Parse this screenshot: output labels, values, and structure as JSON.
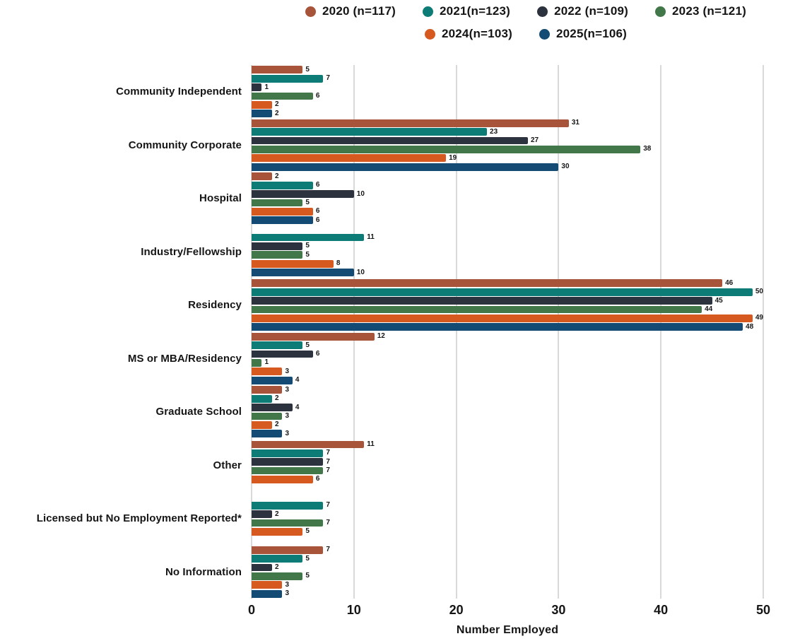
{
  "chart_data": {
    "type": "bar",
    "orientation": "horizontal",
    "xlabel": "Number Employed",
    "xlim": [
      0,
      50
    ],
    "xticks": [
      0,
      10,
      20,
      30,
      40,
      50
    ],
    "grid": "vertical",
    "value_labels": true,
    "legend_position": "top",
    "legend_rows": [
      [
        0,
        1,
        2,
        3
      ],
      [
        4,
        5
      ]
    ],
    "categories": [
      "Community Independent",
      "Community Corporate",
      "Hospital",
      "Industry/Fellowship",
      "Residency",
      "MS or MBA/Residency",
      "Graduate School",
      "Other",
      "Licensed but No Employment Reported*",
      "No Information"
    ],
    "series": [
      {
        "name": "2020 (n=117)",
        "color": "#a8543a",
        "values": [
          5,
          31,
          2,
          0,
          46,
          12,
          3,
          11,
          0,
          7
        ]
      },
      {
        "name": "2021(n=123)",
        "color": "#0e7c76",
        "values": [
          7,
          23,
          6,
          11,
          50,
          5,
          2,
          7,
          7,
          5
        ]
      },
      {
        "name": "2022 (n=109)",
        "color": "#2d333e",
        "values": [
          1,
          27,
          10,
          5,
          45,
          6,
          4,
          7,
          2,
          2
        ]
      },
      {
        "name": "2023 (n=121)",
        "color": "#42774a",
        "values": [
          6,
          38,
          5,
          5,
          44,
          1,
          3,
          7,
          7,
          5
        ]
      },
      {
        "name": "2024(n=103)",
        "color": "#d65a20",
        "values": [
          2,
          19,
          6,
          8,
          49,
          3,
          2,
          6,
          5,
          3
        ]
      },
      {
        "name": "2025(n=106)",
        "color": "#144b75",
        "values": [
          2,
          30,
          6,
          10,
          48,
          4,
          3,
          0,
          0,
          3
        ]
      }
    ],
    "colors": {
      "gridline": "#d9d9d9",
      "text": "#151515"
    }
  }
}
